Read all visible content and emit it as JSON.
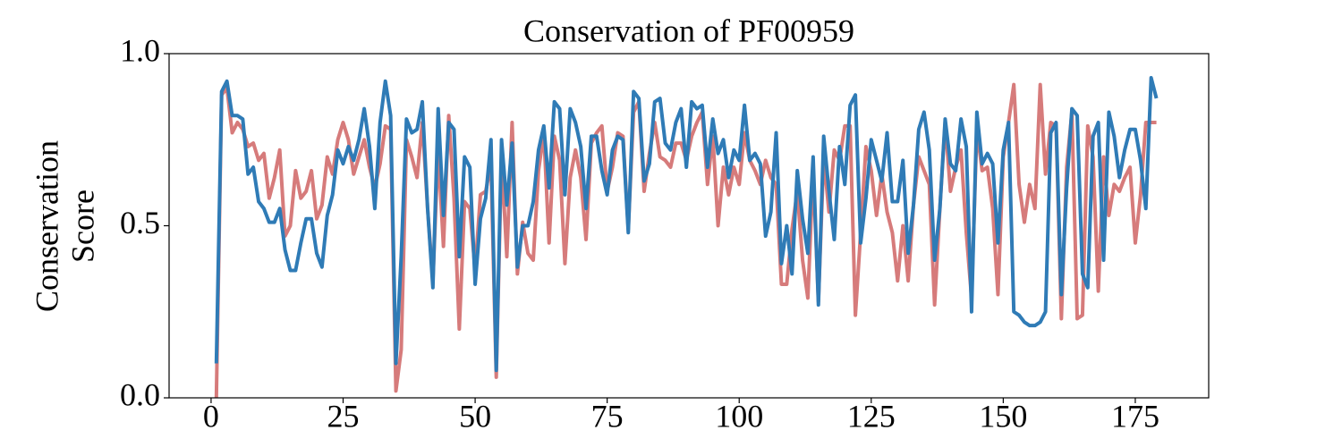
{
  "chart_data": {
    "type": "line",
    "title": "Conservation of PF00959",
    "ylabel": [
      "Conservation",
      "Score"
    ],
    "xlim": [
      -7.95,
      188.9
    ],
    "ylim": [
      0,
      1
    ],
    "xticks": [
      0,
      25,
      50,
      75,
      100,
      125,
      150,
      175
    ],
    "yticks": [
      {
        "value": 0,
        "label": "0.0"
      },
      0.5,
      {
        "value": 1,
        "label": "1.0"
      }
    ],
    "grid": false,
    "x": [
      1,
      2,
      3,
      4,
      5,
      6,
      7,
      8,
      9,
      10,
      11,
      12,
      13,
      14,
      15,
      16,
      17,
      18,
      19,
      20,
      21,
      22,
      23,
      24,
      25,
      26,
      27,
      28,
      29,
      30,
      31,
      32,
      33,
      34,
      35,
      36,
      37,
      38,
      39,
      40,
      41,
      42,
      43,
      44,
      45,
      46,
      47,
      48,
      49,
      50,
      51,
      52,
      53,
      54,
      55,
      56,
      57,
      58,
      59,
      60,
      61,
      62,
      63,
      64,
      65,
      66,
      67,
      68,
      69,
      70,
      71,
      72,
      73,
      74,
      75,
      76,
      77,
      78,
      79,
      80,
      81,
      82,
      83,
      84,
      85,
      86,
      87,
      88,
      89,
      90,
      91,
      92,
      93,
      94,
      95,
      96,
      97,
      98,
      99,
      100,
      101,
      102,
      103,
      104,
      105,
      106,
      107,
      108,
      109,
      110,
      111,
      112,
      113,
      114,
      115,
      116,
      117,
      118,
      119,
      120,
      121,
      122,
      123,
      124,
      125,
      126,
      127,
      128,
      129,
      130,
      131,
      132,
      133,
      134,
      135,
      136,
      137,
      138,
      139,
      140,
      141,
      142,
      143,
      144,
      145,
      146,
      147,
      148,
      149,
      150,
      151,
      152,
      153,
      154,
      155,
      156,
      157,
      158,
      159,
      160,
      161,
      162,
      163,
      164,
      165,
      166,
      167,
      168,
      169,
      170,
      171,
      172,
      173,
      174,
      175,
      176,
      177,
      178,
      179
    ],
    "series": [
      {
        "color": "#d67b7b",
        "values": [
          0.0,
          0.88,
          0.9,
          0.77,
          0.8,
          0.78,
          0.73,
          0.74,
          0.69,
          0.71,
          0.58,
          0.64,
          0.72,
          0.47,
          0.5,
          0.66,
          0.58,
          0.6,
          0.66,
          0.52,
          0.56,
          0.7,
          0.65,
          0.75,
          0.8,
          0.75,
          0.65,
          0.7,
          0.75,
          0.67,
          0.61,
          0.68,
          0.79,
          0.78,
          0.02,
          0.14,
          0.75,
          0.7,
          0.64,
          0.8,
          0.55,
          0.34,
          0.72,
          0.44,
          0.82,
          0.58,
          0.2,
          0.57,
          0.55,
          0.37,
          0.59,
          0.6,
          0.68,
          0.06,
          0.7,
          0.41,
          0.8,
          0.36,
          0.51,
          0.42,
          0.4,
          0.66,
          0.77,
          0.45,
          0.76,
          0.69,
          0.39,
          0.64,
          0.72,
          0.64,
          0.46,
          0.74,
          0.77,
          0.79,
          0.6,
          0.67,
          0.77,
          0.76,
          0.49,
          0.83,
          0.86,
          0.6,
          0.71,
          0.8,
          0.7,
          0.69,
          0.67,
          0.74,
          0.74,
          0.69,
          0.76,
          0.8,
          0.83,
          0.62,
          0.76,
          0.5,
          0.67,
          0.59,
          0.67,
          0.62,
          0.77,
          0.69,
          0.66,
          0.62,
          0.69,
          0.64,
          0.62,
          0.33,
          0.33,
          0.49,
          0.6,
          0.4,
          0.29,
          0.66,
          0.28,
          0.7,
          0.54,
          0.72,
          0.69,
          0.79,
          0.79,
          0.24,
          0.48,
          0.73,
          0.66,
          0.53,
          0.65,
          0.54,
          0.48,
          0.34,
          0.5,
          0.34,
          0.56,
          0.7,
          0.66,
          0.62,
          0.27,
          0.55,
          0.8,
          0.6,
          0.67,
          0.72,
          0.48,
          0.29,
          0.78,
          0.66,
          0.67,
          0.55,
          0.3,
          0.7,
          0.8,
          0.91,
          0.62,
          0.51,
          0.62,
          0.55,
          0.91,
          0.65,
          0.8,
          0.79,
          0.23,
          0.67,
          0.83,
          0.23,
          0.24,
          0.79,
          0.7,
          0.31,
          0.7,
          0.53,
          0.62,
          0.6,
          0.64,
          0.67,
          0.45,
          0.59,
          0.8,
          0.8,
          0.8
        ]
      },
      {
        "color": "#2f7bb6",
        "values": [
          0.1,
          0.89,
          0.92,
          0.82,
          0.82,
          0.81,
          0.65,
          0.67,
          0.57,
          0.55,
          0.51,
          0.51,
          0.55,
          0.43,
          0.37,
          0.37,
          0.45,
          0.52,
          0.52,
          0.42,
          0.38,
          0.53,
          0.59,
          0.72,
          0.68,
          0.73,
          0.69,
          0.75,
          0.84,
          0.73,
          0.55,
          0.8,
          0.92,
          0.82,
          0.1,
          0.41,
          0.81,
          0.77,
          0.78,
          0.86,
          0.55,
          0.32,
          0.84,
          0.53,
          0.8,
          0.78,
          0.41,
          0.7,
          0.67,
          0.33,
          0.52,
          0.58,
          0.75,
          0.08,
          0.75,
          0.56,
          0.74,
          0.38,
          0.5,
          0.5,
          0.57,
          0.72,
          0.79,
          0.61,
          0.86,
          0.84,
          0.59,
          0.84,
          0.8,
          0.73,
          0.55,
          0.76,
          0.76,
          0.66,
          0.59,
          0.72,
          0.76,
          0.75,
          0.48,
          0.89,
          0.87,
          0.63,
          0.68,
          0.86,
          0.87,
          0.74,
          0.72,
          0.8,
          0.84,
          0.67,
          0.86,
          0.84,
          0.85,
          0.67,
          0.81,
          0.71,
          0.75,
          0.64,
          0.72,
          0.69,
          0.85,
          0.69,
          0.71,
          0.68,
          0.47,
          0.54,
          0.77,
          0.39,
          0.5,
          0.36,
          0.66,
          0.52,
          0.42,
          0.7,
          0.27,
          0.76,
          0.6,
          0.46,
          0.73,
          0.62,
          0.85,
          0.88,
          0.45,
          0.58,
          0.75,
          0.69,
          0.63,
          0.77,
          0.57,
          0.57,
          0.69,
          0.42,
          0.56,
          0.78,
          0.83,
          0.72,
          0.4,
          0.55,
          0.81,
          0.68,
          0.66,
          0.81,
          0.73,
          0.25,
          0.83,
          0.68,
          0.71,
          0.68,
          0.45,
          0.72,
          0.8,
          0.25,
          0.24,
          0.22,
          0.21,
          0.21,
          0.22,
          0.25,
          0.77,
          0.8,
          0.3,
          0.61,
          0.84,
          0.82,
          0.36,
          0.32,
          0.76,
          0.8,
          0.4,
          0.83,
          0.76,
          0.64,
          0.72,
          0.78,
          0.78,
          0.69,
          0.55,
          0.93,
          0.87
        ]
      }
    ]
  }
}
